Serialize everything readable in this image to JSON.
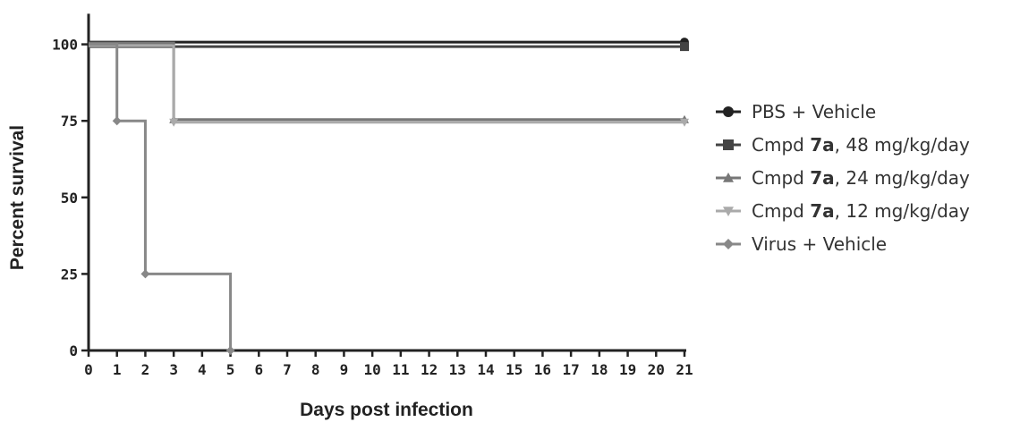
{
  "chart_data": {
    "type": "line",
    "step": true,
    "xlabel": "Days post infection",
    "ylabel": "Percent survival",
    "xlim": [
      0,
      21
    ],
    "ylim": [
      0,
      110
    ],
    "x_ticks": [
      "0",
      "1",
      "2",
      "3",
      "4",
      "5",
      "6",
      "7",
      "8",
      "9",
      "10",
      "11",
      "12",
      "13",
      "14",
      "15",
      "16",
      "17",
      "18",
      "19",
      "20",
      "21"
    ],
    "y_ticks": [
      "0",
      "25",
      "50",
      "75",
      "100"
    ],
    "grid": false,
    "legend": "right",
    "series": [
      {
        "name_parts": [
          "PBS + Vehicle"
        ],
        "bold_part": "",
        "marker": "circle",
        "color": "#222222",
        "x": [
          0,
          21
        ],
        "y": [
          100,
          100
        ]
      },
      {
        "name_parts": [
          "Cmpd ",
          "7a",
          ", 48 mg/kg/day"
        ],
        "bold_part": "7a",
        "marker": "square",
        "color": "#444444",
        "x": [
          0,
          21
        ],
        "y": [
          100,
          100
        ]
      },
      {
        "name_parts": [
          "Cmpd ",
          "7a",
          ", 24 mg/kg/day"
        ],
        "bold_part": "7a",
        "marker": "triangle",
        "color": "#777777",
        "x": [
          0,
          3,
          21
        ],
        "y": [
          100,
          75,
          75
        ]
      },
      {
        "name_parts": [
          "Cmpd ",
          "7a",
          ", 12 mg/kg/day"
        ],
        "bold_part": "7a",
        "marker": "triangle-down",
        "color": "#aaaaaa",
        "x": [
          0,
          3,
          21
        ],
        "y": [
          100,
          75,
          75
        ]
      },
      {
        "name_parts": [
          "Virus + Vehicle"
        ],
        "bold_part": "",
        "marker": "diamond",
        "color": "#888888",
        "x": [
          0,
          1,
          2,
          5
        ],
        "y": [
          100,
          75,
          25,
          0
        ]
      }
    ]
  }
}
